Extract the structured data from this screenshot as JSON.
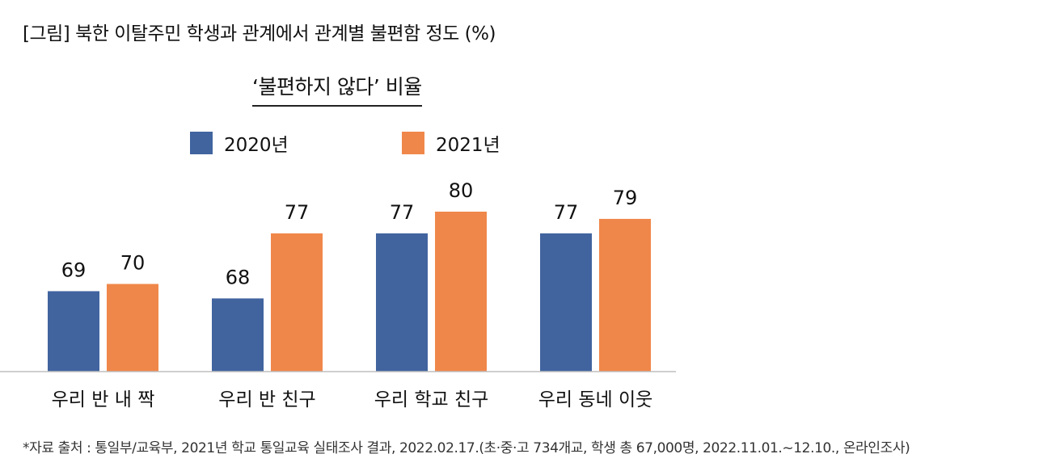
{
  "figure_title": "[그림] 북한 이탈주민 학생과 관계에서 관계별 불편함 정도 (%)",
  "source_note": "*자료 출처 : 통일부/교육부, 2021년 학교 통일교육 실태조사 결과, 2022.02.17.(초·중·고 734개교, 학생 총 67,000명, 2022.11.01.~12.10., 온라인조사)",
  "colors": {
    "series_2020": "#41649f",
    "series_2021": "#f0874a",
    "axis": "#bfbfbf"
  },
  "chart_data": {
    "type": "bar",
    "title": "‘불편하지 않다’ 비율",
    "categories": [
      "우리 반 내 짝",
      "우리 반 친구",
      "우리 학교 친구",
      "우리 동네 이웃"
    ],
    "series": [
      {
        "name": "2020년",
        "values": [
          69,
          68,
          77,
          77
        ]
      },
      {
        "name": "2021년",
        "values": [
          70,
          77,
          80,
          79
        ]
      }
    ],
    "ylim": [
      0,
      80
    ],
    "legend_position": "top",
    "grid": false,
    "xlabel": "",
    "ylabel": ""
  }
}
